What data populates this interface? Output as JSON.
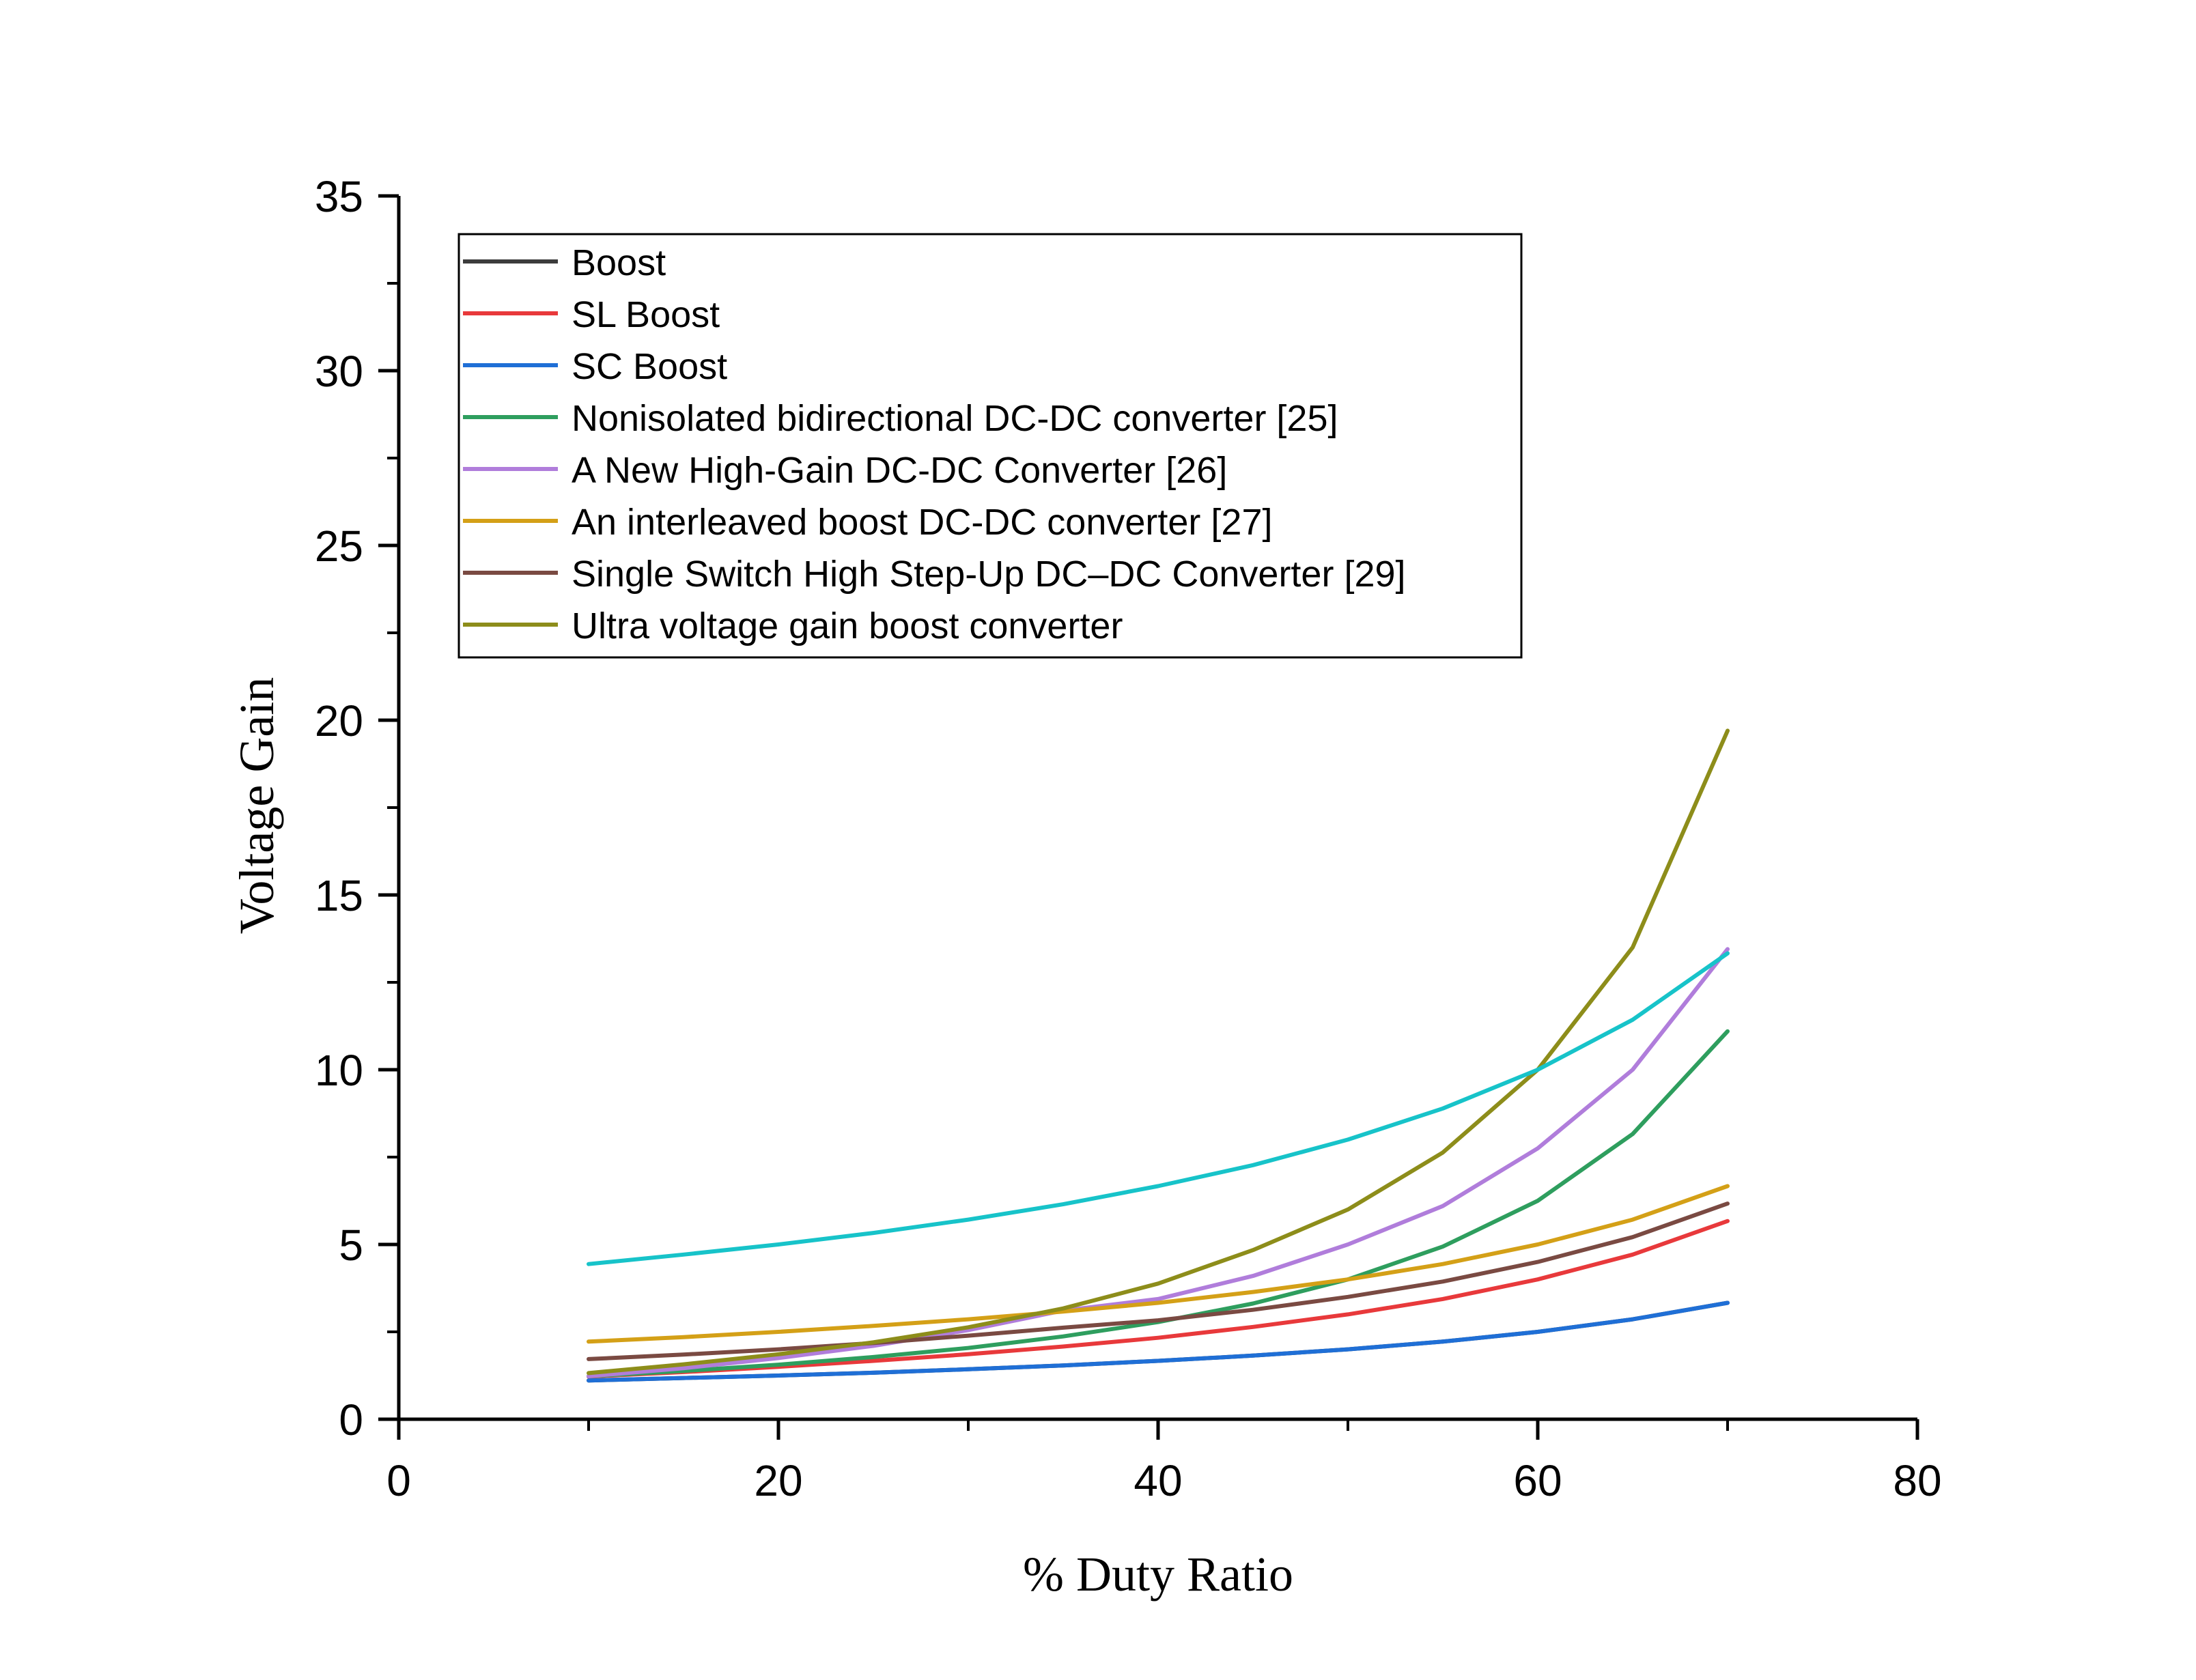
{
  "chart_data": {
    "type": "line",
    "xlabel": "% Duty Ratio",
    "ylabel": "Voltage Gain",
    "xlim": [
      0,
      80
    ],
    "ylim": [
      0,
      35
    ],
    "x_ticks": [
      "0",
      "20",
      "40",
      "60",
      "80"
    ],
    "y_ticks": [
      "0",
      "5",
      "10",
      "15",
      "20",
      "25",
      "30",
      "35"
    ],
    "grid": false,
    "legend_position": "top-left",
    "x": [
      10,
      15,
      20,
      25,
      30,
      35,
      40,
      45,
      50,
      55,
      60,
      65,
      70
    ],
    "series": [
      {
        "name": "Boost",
        "color": "#3c3c3c",
        "values": [
          1.11,
          1.18,
          1.25,
          1.33,
          1.43,
          1.54,
          1.67,
          1.82,
          2.0,
          2.22,
          2.5,
          2.86,
          3.33
        ]
      },
      {
        "name": "SL Boost",
        "color": "#e8393b",
        "values": [
          1.22,
          1.35,
          1.5,
          1.67,
          1.86,
          2.08,
          2.33,
          2.64,
          3.0,
          3.44,
          4.0,
          4.71,
          5.67
        ]
      },
      {
        "name": "SC Boost",
        "color": "#1f6fd6",
        "values": [
          1.11,
          1.18,
          1.25,
          1.33,
          1.43,
          1.54,
          1.67,
          1.82,
          2.0,
          2.22,
          2.5,
          2.86,
          3.33
        ]
      },
      {
        "name": "Nonisolated bidirectional DC-DC converter [25]",
        "color": "#2e9e5e",
        "values": [
          1.23,
          1.38,
          1.56,
          1.78,
          2.04,
          2.37,
          2.78,
          3.31,
          4.0,
          4.94,
          6.25,
          8.16,
          11.1
        ]
      },
      {
        "name": "A New High-Gain DC-DC Converter [26]",
        "color": "#b07ddb",
        "values": [
          1.23,
          1.46,
          1.75,
          2.1,
          2.55,
          3.11,
          3.44,
          4.1,
          5.0,
          6.1,
          7.75,
          10.0,
          13.45
        ]
      },
      {
        "name": "An interleaved boost DC-DC converter [27]",
        "color": "#d4a017",
        "values": [
          2.22,
          2.35,
          2.5,
          2.67,
          2.86,
          3.08,
          3.33,
          3.64,
          4.0,
          4.44,
          5.0,
          5.71,
          6.67
        ]
      },
      {
        "name": "Single Switch High Step-Up DC–DC Converter [29]",
        "color": "#7a4a42",
        "values": [
          1.72,
          1.85,
          2.0,
          2.18,
          2.39,
          2.62,
          2.83,
          3.13,
          3.5,
          3.94,
          4.5,
          5.21,
          6.17
        ]
      },
      {
        "name": "Ultra voltage gain boost converter",
        "color": "#8d8d1a",
        "values": [
          1.32,
          1.57,
          1.86,
          2.2,
          2.63,
          3.17,
          3.88,
          4.84,
          6.0,
          7.63,
          10.0,
          13.5,
          19.7
        ]
      },
      {
        "name": "",
        "color": "#17c3c9",
        "values": [
          4.44,
          4.71,
          5.0,
          5.33,
          5.71,
          6.15,
          6.67,
          7.27,
          8.0,
          8.89,
          10.0,
          11.43,
          13.33
        ]
      }
    ]
  }
}
